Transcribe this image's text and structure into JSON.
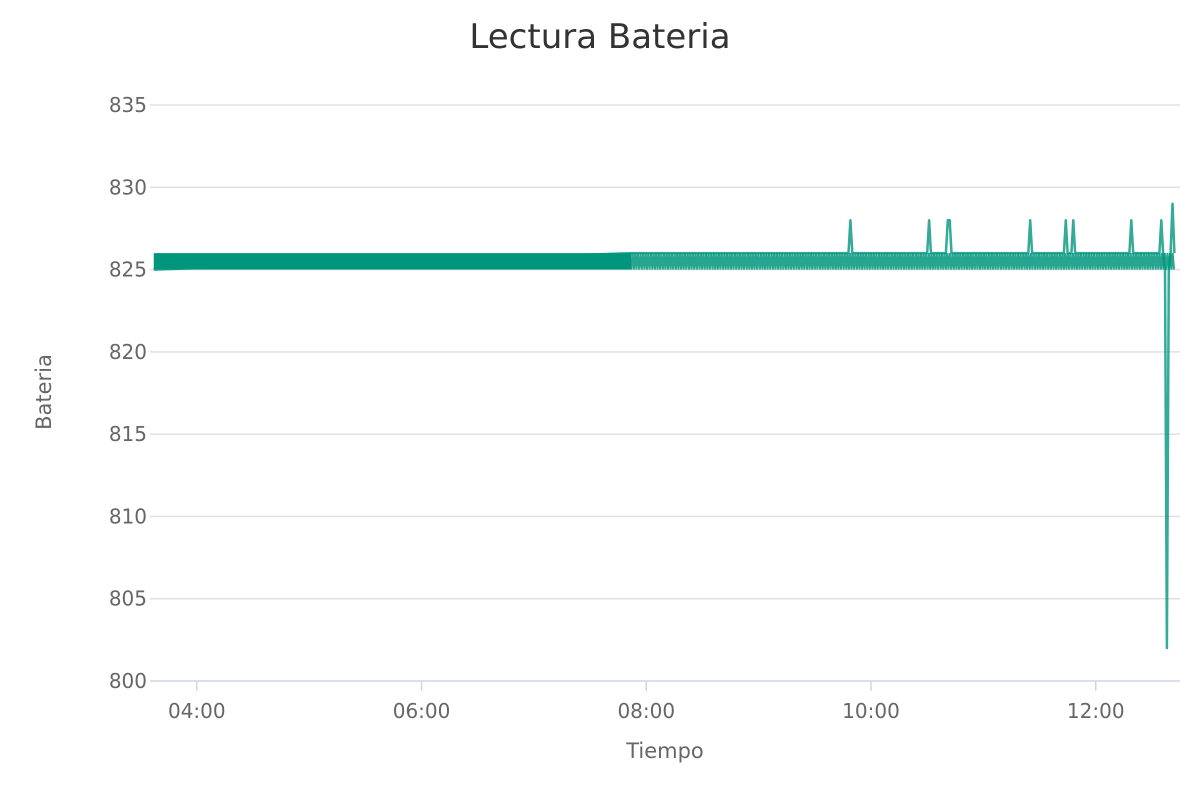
{
  "chart_data": {
    "type": "line",
    "title": "Lectura Bateria",
    "xlabel": "Tiempo",
    "ylabel": "Bateria",
    "ylim": [
      800,
      835
    ],
    "xlim": [
      "03:35",
      "12:45"
    ],
    "x_ticks": [
      "04:00",
      "06:00",
      "08:00",
      "10:00",
      "12:00"
    ],
    "y_ticks": [
      800,
      805,
      810,
      815,
      820,
      825,
      830,
      835
    ],
    "grid": true,
    "legend": "none",
    "series": [
      {
        "color": "#00967d",
        "baseline_min": 825,
        "baseline_max": 826,
        "dense_band": {
          "start": "03:37",
          "end": "07:52",
          "low": 825,
          "high": 826
        },
        "points": [
          {
            "x": "03:37",
            "y": 825
          },
          {
            "x": "07:52",
            "y": 826
          },
          {
            "x": "09:48",
            "y": 826
          },
          {
            "x": "09:49",
            "y": 828
          },
          {
            "x": "09:50",
            "y": 826
          },
          {
            "x": "10:30",
            "y": 826
          },
          {
            "x": "10:31",
            "y": 828
          },
          {
            "x": "10:32",
            "y": 826
          },
          {
            "x": "10:40",
            "y": 826
          },
          {
            "x": "10:41",
            "y": 828
          },
          {
            "x": "10:42",
            "y": 828
          },
          {
            "x": "10:43",
            "y": 826
          },
          {
            "x": "11:24",
            "y": 826
          },
          {
            "x": "11:25",
            "y": 828
          },
          {
            "x": "11:26",
            "y": 826
          },
          {
            "x": "11:43",
            "y": 826
          },
          {
            "x": "11:44",
            "y": 828
          },
          {
            "x": "11:45",
            "y": 826
          },
          {
            "x": "11:47",
            "y": 826
          },
          {
            "x": "11:48",
            "y": 828
          },
          {
            "x": "11:49",
            "y": 826
          },
          {
            "x": "12:18",
            "y": 826
          },
          {
            "x": "12:19",
            "y": 828
          },
          {
            "x": "12:20",
            "y": 826
          },
          {
            "x": "12:34",
            "y": 826
          },
          {
            "x": "12:35",
            "y": 828
          },
          {
            "x": "12:36",
            "y": 826
          },
          {
            "x": "12:37",
            "y": 825
          },
          {
            "x": "12:38",
            "y": 802
          },
          {
            "x": "12:39",
            "y": 825
          },
          {
            "x": "12:40",
            "y": 826
          },
          {
            "x": "12:41",
            "y": 829
          },
          {
            "x": "12:42",
            "y": 826
          }
        ]
      }
    ]
  }
}
